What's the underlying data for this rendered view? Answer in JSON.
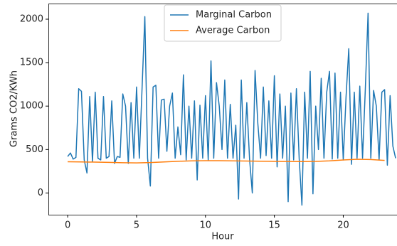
{
  "chart_data": {
    "type": "line",
    "xlabel": "Hour",
    "ylabel": "Grams CO2/KWh",
    "xlim": [
      -1.4,
      23.9
    ],
    "ylim": [
      -250,
      2180
    ],
    "xticks": [
      0,
      5,
      10,
      15,
      20
    ],
    "yticks": [
      0,
      500,
      1000,
      1500,
      2000
    ],
    "legend": "upper center",
    "series": [
      {
        "name": "Marginal Carbon",
        "color": "#1f77b4",
        "x": [
          0,
          0.2,
          0.4,
          0.6,
          0.8,
          1,
          1.2,
          1.4,
          1.6,
          1.8,
          2,
          2.2,
          2.4,
          2.6,
          2.8,
          3,
          3.2,
          3.4,
          3.6,
          3.8,
          4,
          4.2,
          4.4,
          4.6,
          4.8,
          5,
          5.2,
          5.4,
          5.6,
          5.8,
          6,
          6.2,
          6.4,
          6.6,
          6.8,
          7,
          7.2,
          7.4,
          7.6,
          7.8,
          8,
          8.2,
          8.4,
          8.6,
          8.8,
          9,
          9.2,
          9.4,
          9.6,
          9.8,
          10,
          10.2,
          10.4,
          10.6,
          10.8,
          11,
          11.2,
          11.4,
          11.6,
          11.8,
          12,
          12.2,
          12.4,
          12.6,
          12.8,
          13,
          13.2,
          13.4,
          13.6,
          13.8,
          14,
          14.2,
          14.4,
          14.6,
          14.8,
          15,
          15.2,
          15.4,
          15.6,
          15.8,
          16,
          16.2,
          16.4,
          16.6,
          16.8,
          17,
          17.2,
          17.4,
          17.6,
          17.8,
          18,
          18.2,
          18.4,
          18.6,
          18.8,
          19,
          19.2,
          19.4,
          19.6,
          19.8,
          20,
          20.2,
          20.4,
          20.6,
          20.8,
          21,
          21.2,
          21.4,
          21.6,
          21.8,
          22,
          22.2,
          22.4,
          22.6,
          22.8,
          23,
          23.2,
          23.4,
          23.6,
          23.8
        ],
        "values": [
          420,
          460,
          390,
          410,
          1200,
          1170,
          380,
          230,
          1110,
          360,
          1160,
          400,
          380,
          1110,
          400,
          420,
          1060,
          340,
          420,
          410,
          1140,
          1000,
          340,
          1040,
          400,
          1220,
          400,
          1210,
          2030,
          400,
          80,
          1220,
          1240,
          400,
          1070,
          1080,
          480,
          1000,
          1150,
          400,
          760,
          440,
          1360,
          380,
          1000,
          400,
          1060,
          150,
          1010,
          400,
          1120,
          380,
          1520,
          400,
          1270,
          1000,
          500,
          1300,
          400,
          1020,
          400,
          780,
          -70,
          1300,
          400,
          1040,
          390,
          0,
          1410,
          800,
          400,
          1220,
          430,
          1060,
          400,
          1350,
          300,
          1140,
          400,
          1000,
          -100,
          1150,
          380,
          1200,
          400,
          -140,
          1160,
          400,
          1400,
          -10,
          1000,
          500,
          1320,
          400,
          1160,
          1400,
          390,
          1380,
          400,
          1160,
          380,
          1100,
          1660,
          330,
          1160,
          400,
          1230,
          400,
          1190,
          2070,
          400,
          1180,
          1000,
          380,
          1160,
          1190,
          320,
          1120,
          540,
          400
        ]
      },
      {
        "name": "Average Carbon",
        "color": "#ff7f0e",
        "x": [
          0,
          1,
          2,
          3,
          4,
          5,
          6,
          7,
          8,
          9,
          10,
          11,
          12,
          13,
          14,
          15,
          16,
          17,
          18,
          19,
          20,
          21,
          22,
          23
        ],
        "values": [
          360,
          358,
          355,
          352,
          348,
          346,
          350,
          358,
          365,
          370,
          372,
          372,
          370,
          368,
          366,
          364,
          363,
          362,
          364,
          370,
          380,
          388,
          385,
          375
        ]
      }
    ]
  }
}
